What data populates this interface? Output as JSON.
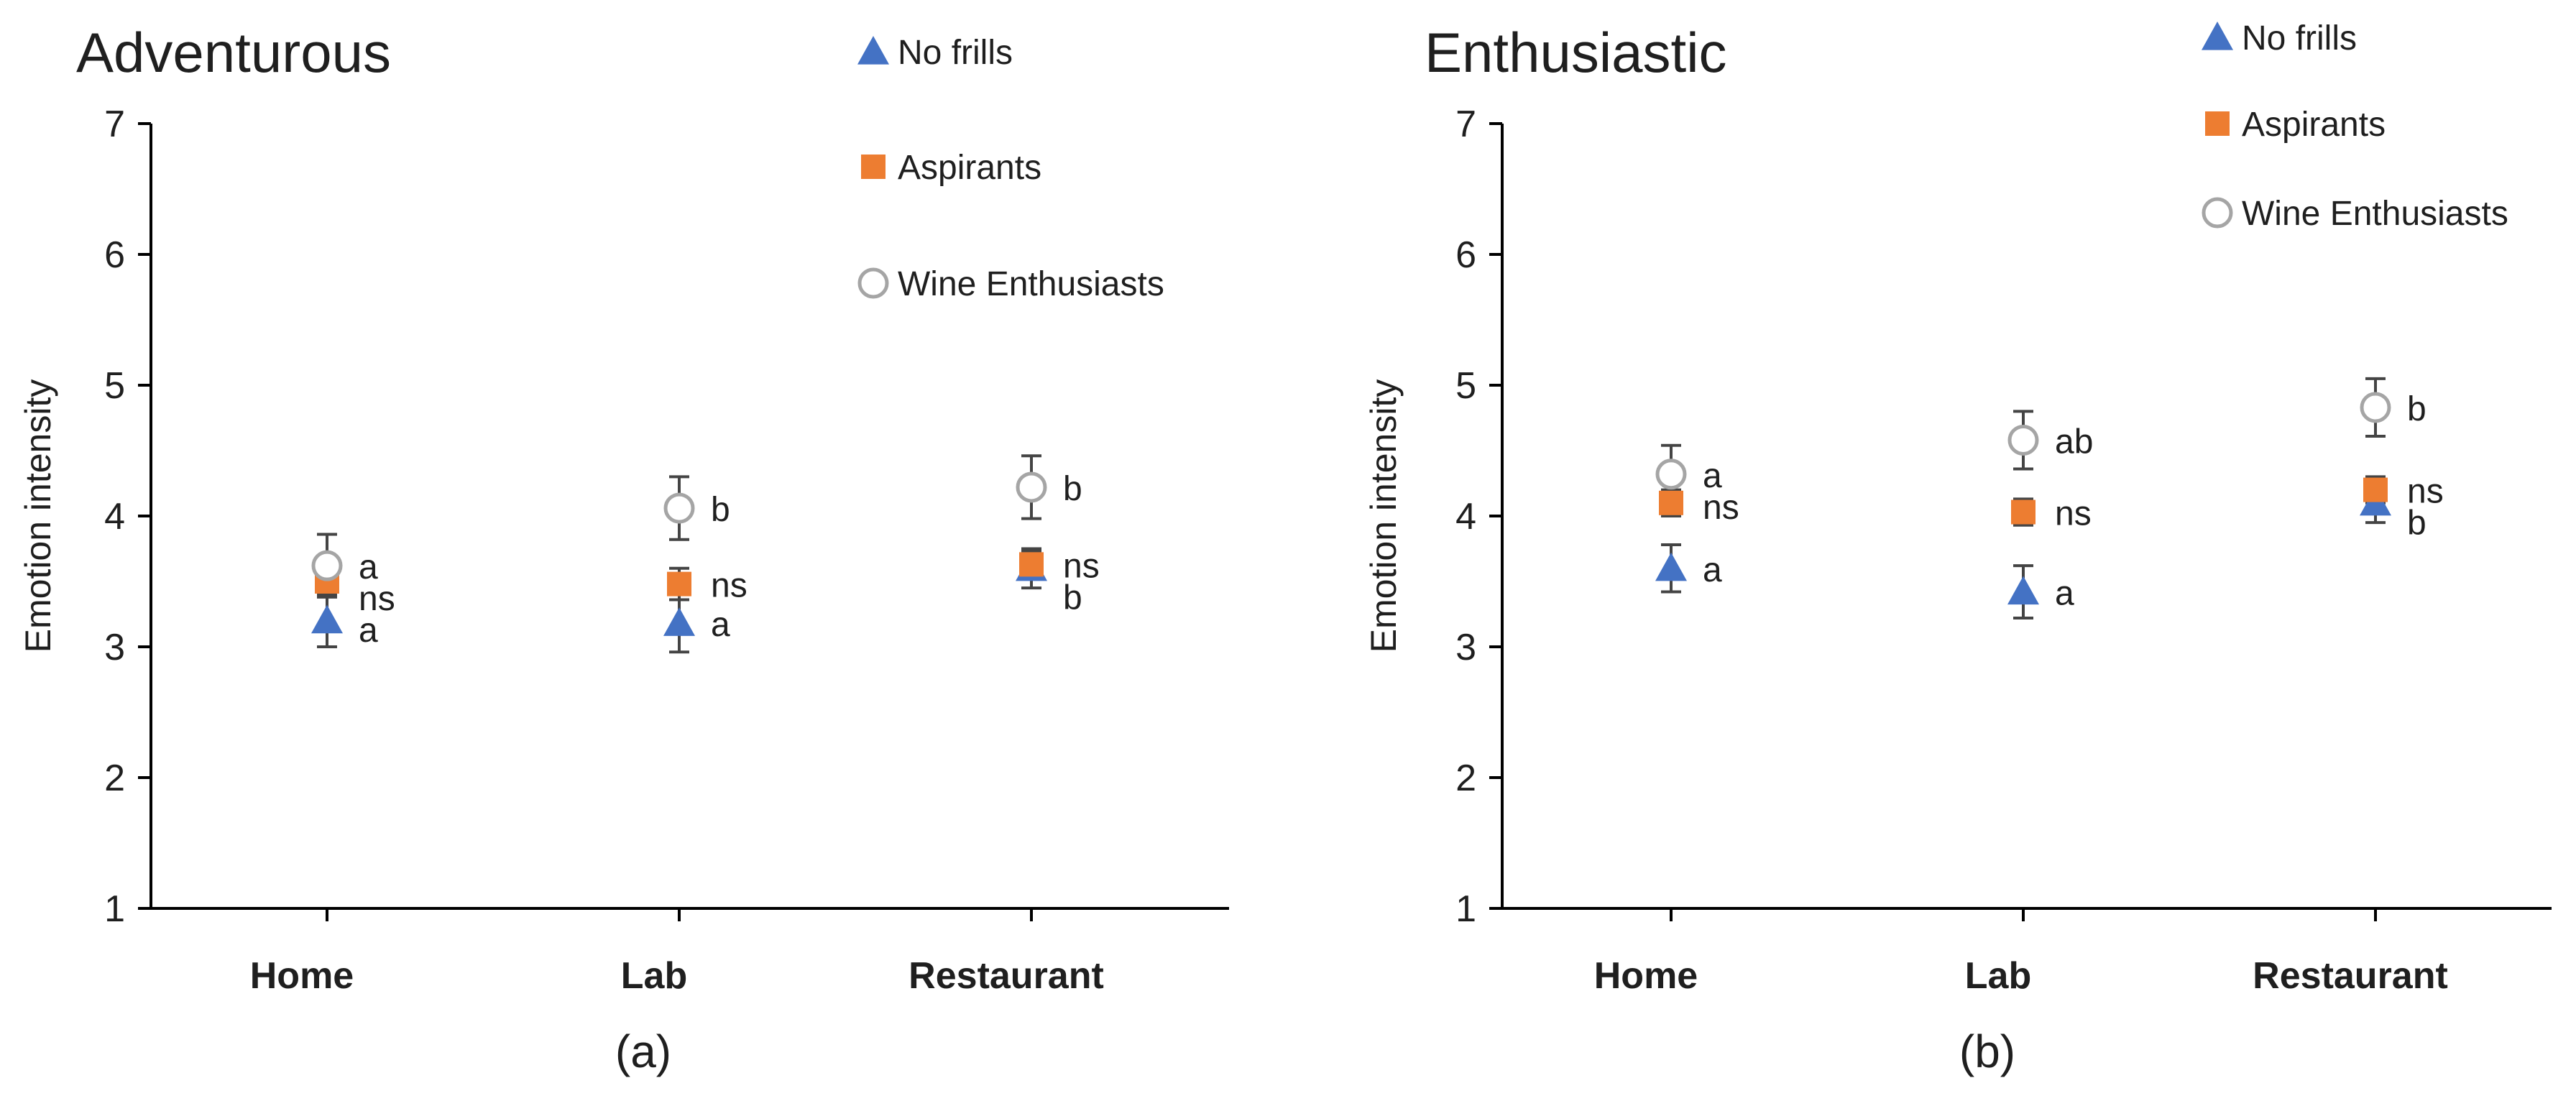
{
  "chart_data": [
    {
      "type": "scatter",
      "title": "Adventurous",
      "caption": "(a)",
      "xlabel": "",
      "ylabel": "Emotion intensity",
      "ylim": [
        1,
        7
      ],
      "yticks": [
        1,
        2,
        3,
        4,
        5,
        6,
        7
      ],
      "categories": [
        "Home",
        "Lab",
        "Restaurant"
      ],
      "legend": {
        "placement": "top-right"
      },
      "series": [
        {
          "name": "No frills",
          "marker": "triangle",
          "color": "#4472C4",
          "values": [
            3.2,
            3.18,
            3.6
          ],
          "errors": [
            0.2,
            0.22,
            0.15
          ],
          "labels": [
            "a",
            "a",
            "b"
          ]
        },
        {
          "name": "Aspirants",
          "marker": "square",
          "color": "#ED7D31",
          "values": [
            3.5,
            3.48,
            3.63
          ],
          "errors": [
            0.1,
            0.12,
            0.1
          ],
          "labels": [
            "ns",
            "ns",
            "ns"
          ]
        },
        {
          "name": "Wine Enthusiasts",
          "marker": "circle",
          "color": "#A5A5A5",
          "values": [
            3.62,
            4.06,
            4.22
          ],
          "errors": [
            0.24,
            0.24,
            0.24
          ],
          "labels": [
            "a",
            "b",
            "b"
          ]
        }
      ]
    },
    {
      "type": "scatter",
      "title": "Enthusiastic",
      "caption": "(b)",
      "xlabel": "",
      "ylabel": "Emotion intensity",
      "ylim": [
        1,
        7
      ],
      "yticks": [
        1,
        2,
        3,
        4,
        5,
        6,
        7
      ],
      "categories": [
        "Home",
        "Lab",
        "Restaurant"
      ],
      "legend": {
        "placement": "top-right"
      },
      "series": [
        {
          "name": "No frills",
          "marker": "triangle",
          "color": "#4472C4",
          "values": [
            3.6,
            3.42,
            4.1
          ],
          "errors": [
            0.18,
            0.2,
            0.15
          ],
          "labels": [
            "a",
            "a",
            "b"
          ]
        },
        {
          "name": "Aspirants",
          "marker": "square",
          "color": "#ED7D31",
          "values": [
            4.1,
            4.03,
            4.2
          ],
          "errors": [
            0.1,
            0.1,
            0.1
          ],
          "labels": [
            "ns",
            "ns",
            "ns"
          ]
        },
        {
          "name": "Wine Enthusiasts",
          "marker": "circle",
          "color": "#A5A5A5",
          "values": [
            4.32,
            4.58,
            4.83
          ],
          "errors": [
            0.22,
            0.22,
            0.22
          ],
          "labels": [
            "a",
            "ab",
            "b"
          ]
        }
      ]
    }
  ]
}
